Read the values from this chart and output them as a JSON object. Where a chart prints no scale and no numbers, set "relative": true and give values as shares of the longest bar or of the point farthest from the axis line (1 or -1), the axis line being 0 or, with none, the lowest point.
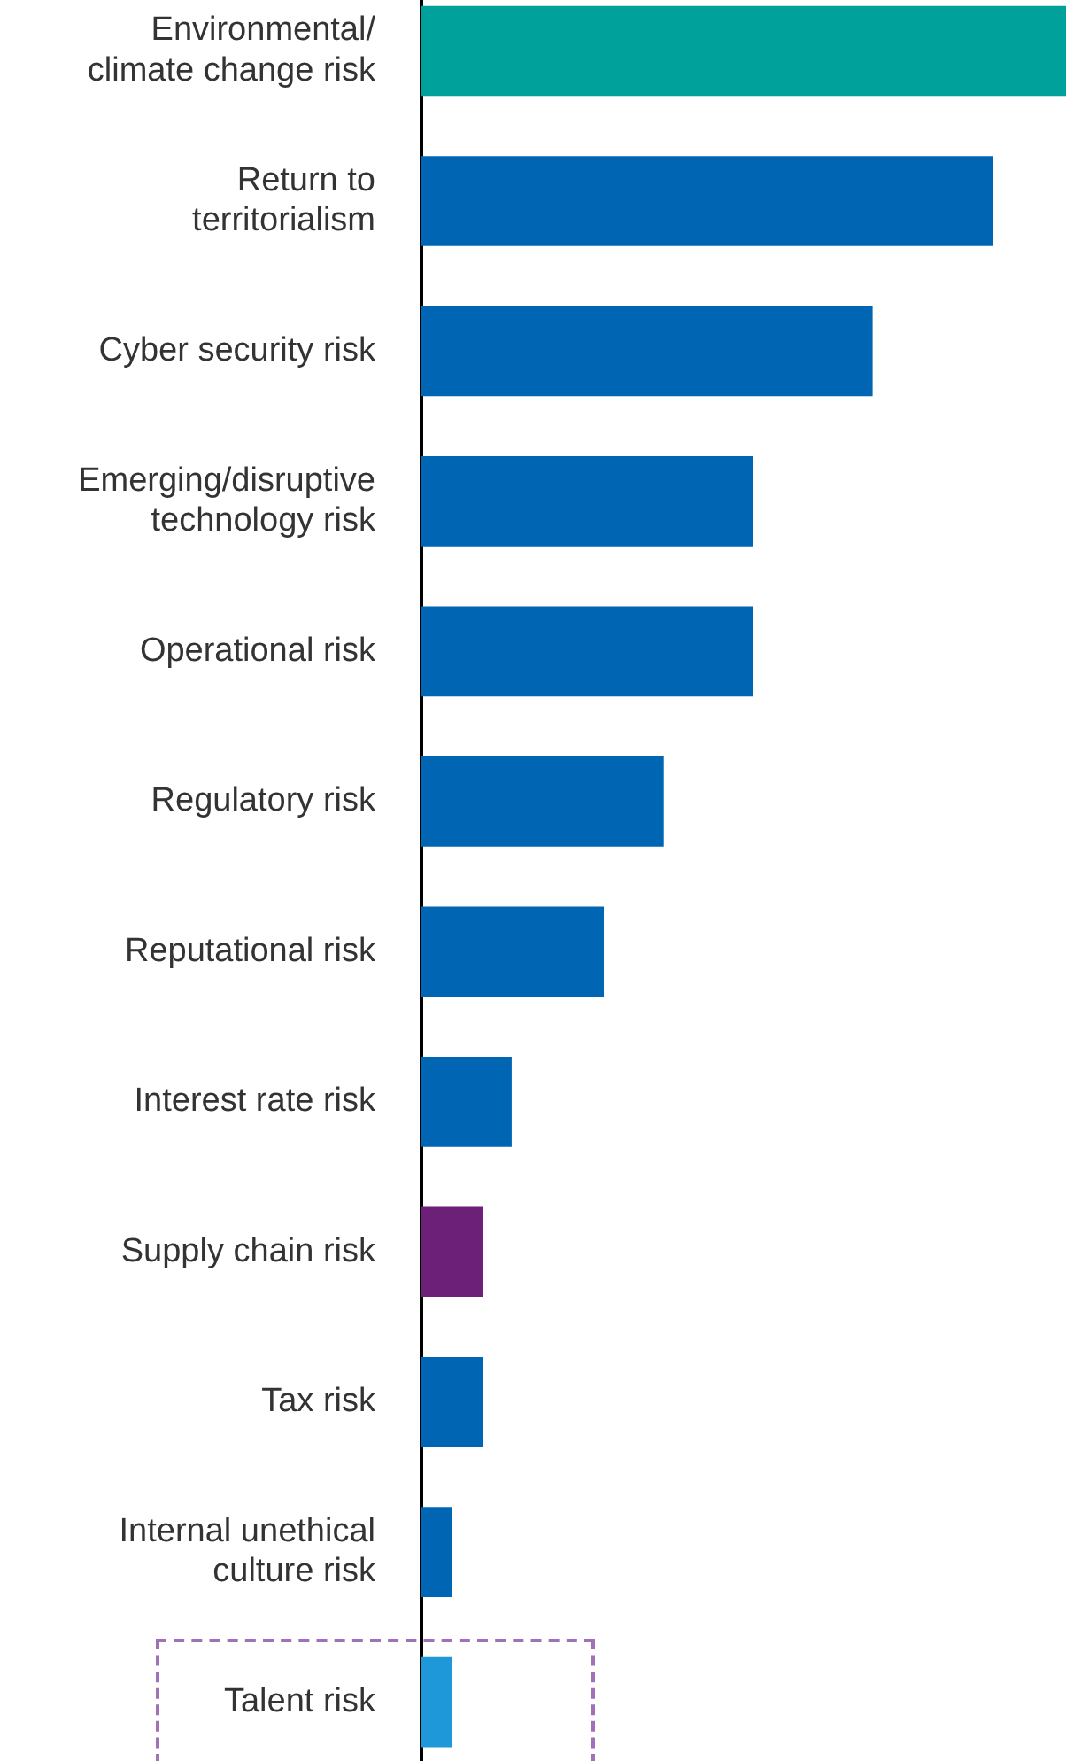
{
  "chart_data": {
    "type": "bar",
    "orientation": "horizontal",
    "relative": true,
    "categories": [
      "Environmental/climate change risk",
      "Return to territorialism",
      "Cyber security risk",
      "Emerging/disruptive technology risk",
      "Operational risk",
      "Regulatory risk",
      "Reputational risk",
      "Interest rate risk",
      "Supply chain risk",
      "Tax risk",
      "Internal unethical culture risk",
      "Talent risk"
    ],
    "values": [
      1,
      0.887,
      0.7,
      0.514,
      0.514,
      0.376,
      0.283,
      0.14,
      0.096,
      0.096,
      0.047,
      0.047
    ],
    "colors": [
      "#00a19a",
      "#0066b3",
      "#0066b3",
      "#0066b3",
      "#0066b3",
      "#0066b3",
      "#0066b3",
      "#0066b3",
      "#6d2077",
      "#0066b3",
      "#0066b3",
      "#1e98d8"
    ],
    "legend": false
  }
}
